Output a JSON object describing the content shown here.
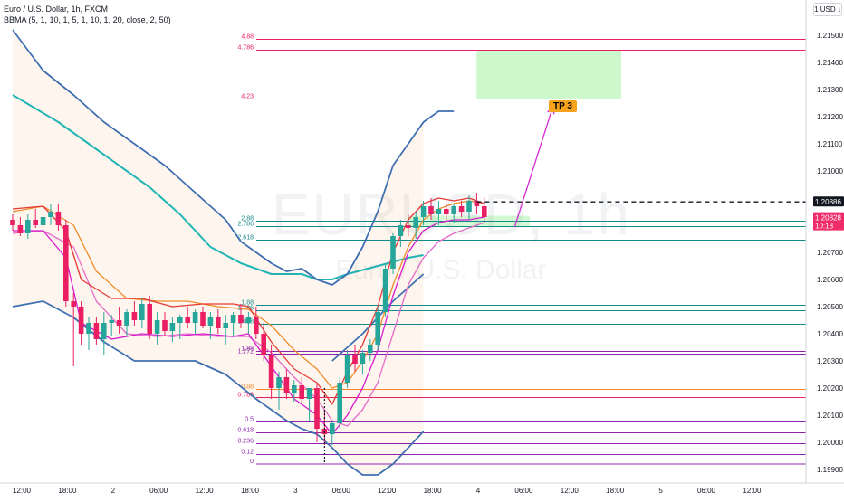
{
  "legend": {
    "symbol_line": "Euro / U.S. Dollar, 1h, FXCM",
    "indicator_line": "BBMA (5, 1, 10, 1, 5, 1, 10, 1, 20, close, 2, 50)"
  },
  "watermark": {
    "symbol": "EURUSD, 1h",
    "name": "Euro / U.S. Dollar"
  },
  "currency_button": "1 USD ↓",
  "tp_label": "TP 3",
  "colors": {
    "up": "#26a69a",
    "down": "#e91e63",
    "bb_outer": "#3f6fb0",
    "ema50": "#21b5b5",
    "ma5_high": "#e53935",
    "ma5_low": "#d81bd0",
    "ma10_high": "#ef8c2a",
    "ma10_low": "#e56cc9",
    "fib_pink": "#e91e63",
    "fib_teal": "#138a8a",
    "fib_purple": "#8e24aa",
    "fib_orange": "#f5842a",
    "tp_zone": "#b7f5b7",
    "arrow": "#d62ad6",
    "current_price": "#ef2c69"
  },
  "chart_data": {
    "type": "candlestick",
    "title": "Euro / U.S. Dollar, 1h, FXCM",
    "ylim": [
      1.1985,
      1.2163
    ],
    "y_ticks": [
      1.215,
      1.214,
      1.213,
      1.212,
      1.211,
      1.21,
      1.208,
      1.207,
      1.206,
      1.205,
      1.204,
      1.203,
      1.202,
      1.201,
      1.2,
      1.199
    ],
    "x_tick_labels": [
      "12:00",
      "18:00",
      "2",
      "06:00",
      "12:00",
      "18:00",
      "3",
      "06:00",
      "12:00",
      "18:00",
      "4",
      "06:00",
      "12:00",
      "18:00",
      "5",
      "06:00",
      "12:00"
    ],
    "price_labels": [
      {
        "value": 1.20886,
        "text": "1.20886"
      },
      {
        "value": 1.20828,
        "text": "1.20828",
        "sub": "10:18"
      }
    ],
    "candles": [
      [
        1.2082,
        1.2084,
        1.2078,
        1.208
      ],
      [
        1.208,
        1.2083,
        1.2076,
        1.2077
      ],
      [
        1.2077,
        1.2084,
        1.2075,
        1.2082
      ],
      [
        1.2082,
        1.2086,
        1.2079,
        1.208
      ],
      [
        1.208,
        1.2084,
        1.2076,
        1.2083
      ],
      [
        1.2083,
        1.2088,
        1.208,
        1.2085
      ],
      [
        1.2085,
        1.2088,
        1.2078,
        1.208
      ],
      [
        1.208,
        1.2082,
        1.205,
        1.2052
      ],
      [
        1.2052,
        1.2055,
        1.2028,
        1.205
      ],
      [
        1.205,
        1.2052,
        1.2036,
        1.204
      ],
      [
        1.204,
        1.2046,
        1.2034,
        1.2044
      ],
      [
        1.2044,
        1.2046,
        1.2036,
        1.2038
      ],
      [
        1.2038,
        1.2048,
        1.2032,
        1.2044
      ],
      [
        1.2044,
        1.2047,
        1.2039,
        1.2045
      ],
      [
        1.2045,
        1.205,
        1.204,
        1.2043
      ],
      [
        1.2043,
        1.2049,
        1.2039,
        1.2048
      ],
      [
        1.2048,
        1.2052,
        1.2043,
        1.2045
      ],
      [
        1.2045,
        1.2053,
        1.2042,
        1.2051
      ],
      [
        1.2051,
        1.2054,
        1.2038,
        1.204
      ],
      [
        1.204,
        1.2048,
        1.2036,
        1.2045
      ],
      [
        1.2045,
        1.2048,
        1.2039,
        1.2041
      ],
      [
        1.2041,
        1.2046,
        1.2037,
        1.2044
      ],
      [
        1.2044,
        1.2047,
        1.2038,
        1.2046
      ],
      [
        1.2046,
        1.205,
        1.2042,
        1.2044
      ],
      [
        1.2044,
        1.2049,
        1.204,
        1.2048
      ],
      [
        1.2048,
        1.205,
        1.2042,
        1.2043
      ],
      [
        1.2043,
        1.2048,
        1.2038,
        1.2046
      ],
      [
        1.2046,
        1.2049,
        1.204,
        1.2042
      ],
      [
        1.2042,
        1.2047,
        1.2036,
        1.2044
      ],
      [
        1.2044,
        1.2048,
        1.2039,
        1.2047
      ],
      [
        1.2047,
        1.2051,
        1.2042,
        1.2044
      ],
      [
        1.2044,
        1.2048,
        1.204,
        1.2046
      ],
      [
        1.2046,
        1.205,
        1.2038,
        1.204
      ],
      [
        1.204,
        1.2044,
        1.203,
        1.2032
      ],
      [
        1.2032,
        1.2036,
        1.2016,
        1.202
      ],
      [
        1.202,
        1.2026,
        1.2012,
        1.2024
      ],
      [
        1.2024,
        1.2027,
        1.2016,
        1.2018
      ],
      [
        1.2018,
        1.2023,
        1.2015,
        1.2021
      ],
      [
        1.2021,
        1.2024,
        1.2014,
        1.2016
      ],
      [
        1.2016,
        1.202,
        1.2008,
        1.202
      ],
      [
        1.202,
        1.2022,
        1.2,
        1.2005
      ],
      [
        1.2005,
        1.2012,
        1.1999,
        1.2003
      ],
      [
        1.2003,
        1.2008,
        1.1999,
        1.2007
      ],
      [
        1.2007,
        1.2024,
        1.2005,
        1.2022
      ],
      [
        1.2022,
        1.2034,
        1.202,
        1.2032
      ],
      [
        1.2032,
        1.2036,
        1.2026,
        1.2029
      ],
      [
        1.2029,
        1.2034,
        1.2025,
        1.2033
      ],
      [
        1.2033,
        1.2038,
        1.203,
        1.2036
      ],
      [
        1.2036,
        1.205,
        1.2034,
        1.2048
      ],
      [
        1.2048,
        1.2066,
        1.2046,
        1.2064
      ],
      [
        1.2064,
        1.2077,
        1.2062,
        1.2076
      ],
      [
        1.2076,
        1.2082,
        1.2072,
        1.208
      ],
      [
        1.208,
        1.2084,
        1.2076,
        1.2079
      ],
      [
        1.2079,
        1.2085,
        1.2075,
        1.2083
      ],
      [
        1.2083,
        1.2089,
        1.208,
        1.2087
      ],
      [
        1.2087,
        1.209,
        1.2082,
        1.2084
      ],
      [
        1.2084,
        1.2089,
        1.208,
        1.2086
      ],
      [
        1.2086,
        1.2088,
        1.2082,
        1.2084
      ],
      [
        1.2084,
        1.2088,
        1.2081,
        1.2087
      ],
      [
        1.2087,
        1.2089,
        1.2083,
        1.2085
      ],
      [
        1.2085,
        1.2091,
        1.2082,
        1.2089
      ],
      [
        1.2089,
        1.2092,
        1.2084,
        1.2087
      ],
      [
        1.2087,
        1.209,
        1.2081,
        1.2083
      ]
    ],
    "indicators": {
      "bb_upper": [
        [
          0,
          1.2152
        ],
        [
          4,
          1.2137
        ],
        [
          8,
          1.2128
        ],
        [
          12,
          1.2118
        ],
        [
          16,
          1.211
        ],
        [
          20,
          1.2102
        ],
        [
          24,
          1.2092
        ],
        [
          28,
          1.2082
        ],
        [
          30,
          1.2074
        ],
        [
          34,
          1.2066
        ],
        [
          36,
          1.2063
        ],
        [
          38,
          1.2064
        ],
        [
          40,
          1.206
        ],
        [
          42,
          1.2058
        ],
        [
          44,
          1.2062
        ],
        [
          46,
          1.2072
        ],
        [
          48,
          1.2085
        ],
        [
          50,
          1.2102
        ],
        [
          52,
          1.211
        ],
        [
          54,
          1.2118
        ],
        [
          56,
          1.2122
        ],
        [
          58,
          1.2122
        ]
      ],
      "bb_lower": [
        [
          0,
          1.205
        ],
        [
          4,
          1.2052
        ],
        [
          8,
          1.2046
        ],
        [
          12,
          1.2037
        ],
        [
          16,
          1.203
        ],
        [
          20,
          1.203
        ],
        [
          24,
          1.203
        ],
        [
          28,
          1.2025
        ],
        [
          32,
          1.2016
        ],
        [
          36,
          1.2008
        ],
        [
          38,
          1.2005
        ],
        [
          40,
          1.2003
        ],
        [
          42,
          1.1998
        ],
        [
          44,
          1.1992
        ],
        [
          46,
          1.1988
        ],
        [
          48,
          1.1988
        ],
        [
          50,
          1.1992
        ],
        [
          52,
          1.1998
        ],
        [
          54,
          1.2004
        ]
      ],
      "bb_upper_tail": [
        [
          42,
          1.203
        ],
        [
          46,
          1.204
        ],
        [
          50,
          1.2052
        ],
        [
          54,
          1.2062
        ]
      ],
      "ema50": [
        [
          0,
          1.2128
        ],
        [
          6,
          1.2118
        ],
        [
          12,
          1.2106
        ],
        [
          18,
          1.2094
        ],
        [
          22,
          1.2084
        ],
        [
          26,
          1.2072
        ],
        [
          30,
          1.2066
        ],
        [
          34,
          1.2062
        ],
        [
          38,
          1.2062
        ],
        [
          40,
          1.206
        ],
        [
          42,
          1.206
        ],
        [
          44,
          1.2062
        ],
        [
          48,
          1.2065
        ],
        [
          52,
          1.2068
        ],
        [
          54,
          1.2069
        ]
      ],
      "ma5_high": [
        [
          0,
          1.2086
        ],
        [
          4,
          1.2087
        ],
        [
          7,
          1.2078
        ],
        [
          9,
          1.206
        ],
        [
          13,
          1.2053
        ],
        [
          17,
          1.2053
        ],
        [
          21,
          1.205
        ],
        [
          25,
          1.2051
        ],
        [
          29,
          1.2051
        ],
        [
          31,
          1.205
        ],
        [
          34,
          1.2037
        ],
        [
          37,
          1.2027
        ],
        [
          40,
          1.2022
        ],
        [
          42,
          1.2014
        ],
        [
          44,
          1.2026
        ],
        [
          46,
          1.2036
        ],
        [
          48,
          1.205
        ],
        [
          50,
          1.207
        ],
        [
          52,
          1.2082
        ],
        [
          54,
          1.2088
        ],
        [
          56,
          1.209
        ],
        [
          58,
          1.2089
        ],
        [
          60,
          1.209
        ],
        [
          62,
          1.2088
        ]
      ],
      "ma5_low": [
        [
          0,
          1.2078
        ],
        [
          4,
          1.2078
        ],
        [
          7,
          1.2068
        ],
        [
          9,
          1.2044
        ],
        [
          13,
          1.2038
        ],
        [
          17,
          1.204
        ],
        [
          21,
          1.2039
        ],
        [
          25,
          1.204
        ],
        [
          29,
          1.2039
        ],
        [
          31,
          1.204
        ],
        [
          34,
          1.2028
        ],
        [
          37,
          1.2016
        ],
        [
          40,
          1.201
        ],
        [
          42,
          1.2003
        ],
        [
          44,
          1.201
        ],
        [
          46,
          1.202
        ],
        [
          48,
          1.2034
        ],
        [
          50,
          1.2054
        ],
        [
          52,
          1.207
        ],
        [
          54,
          1.2078
        ],
        [
          56,
          1.2081
        ],
        [
          58,
          1.2082
        ],
        [
          60,
          1.2082
        ],
        [
          62,
          1.2083
        ]
      ],
      "ma10_high": [
        [
          0,
          1.2085
        ],
        [
          4,
          1.2087
        ],
        [
          8,
          1.208
        ],
        [
          11,
          1.2063
        ],
        [
          15,
          1.2053
        ],
        [
          19,
          1.2052
        ],
        [
          23,
          1.2052
        ],
        [
          27,
          1.205
        ],
        [
          31,
          1.2049
        ],
        [
          34,
          1.2043
        ],
        [
          37,
          1.2034
        ],
        [
          40,
          1.2027
        ],
        [
          42,
          1.202
        ],
        [
          44,
          1.2022
        ],
        [
          46,
          1.203
        ],
        [
          48,
          1.204
        ],
        [
          50,
          1.2058
        ],
        [
          52,
          1.2072
        ],
        [
          54,
          1.2082
        ],
        [
          56,
          1.2086
        ],
        [
          58,
          1.2088
        ],
        [
          60,
          1.2089
        ],
        [
          62,
          1.2088
        ]
      ],
      "ma10_low": [
        [
          0,
          1.2077
        ],
        [
          4,
          1.2078
        ],
        [
          8,
          1.2072
        ],
        [
          11,
          1.2052
        ],
        [
          15,
          1.204
        ],
        [
          19,
          1.2039
        ],
        [
          23,
          1.204
        ],
        [
          27,
          1.2039
        ],
        [
          31,
          1.2039
        ],
        [
          34,
          1.2033
        ],
        [
          37,
          1.2024
        ],
        [
          40,
          1.2016
        ],
        [
          42,
          1.2008
        ],
        [
          44,
          1.2006
        ],
        [
          46,
          1.2012
        ],
        [
          48,
          1.2022
        ],
        [
          50,
          1.204
        ],
        [
          52,
          1.2058
        ],
        [
          54,
          1.2068
        ],
        [
          56,
          1.2074
        ],
        [
          58,
          1.2077
        ],
        [
          60,
          1.2079
        ],
        [
          62,
          1.2081
        ]
      ]
    },
    "fib_levels": [
      {
        "label": "4.88",
        "value": 1.21485,
        "color": "fib_pink"
      },
      {
        "label": "4.786",
        "value": 1.21445,
        "color": "fib_pink"
      },
      {
        "label": "4.23",
        "value": 1.21265,
        "color": "fib_pink"
      },
      {
        "label": "2.88",
        "value": 1.20815,
        "color": "fib_teal"
      },
      {
        "label": "2.786",
        "value": 1.20795,
        "color": "fib_teal"
      },
      {
        "label": "2.618",
        "value": 1.20745,
        "color": "fib_teal"
      },
      {
        "label": "1.88",
        "value": 1.20505,
        "color": "fib_teal"
      },
      {
        "label": "1.786",
        "value": 1.20485,
        "color": "fib_teal"
      },
      {
        "label": "1.618",
        "value": 1.20435,
        "color": "fib_teal"
      },
      {
        "label": "1.88",
        "value": 1.20335,
        "color": "fib_purple"
      },
      {
        "label": "1.272",
        "value": 1.20325,
        "color": "fib_purple"
      },
      {
        "label": "0.88",
        "value": 1.20195,
        "color": "fib_orange"
      },
      {
        "label": "0.786",
        "value": 1.20165,
        "color": "fib_pink"
      },
      {
        "label": "0.5",
        "value": 1.20075,
        "color": "fib_purple"
      },
      {
        "label": "0.618",
        "value": 1.20035,
        "color": "fib_purple"
      },
      {
        "label": "0.236",
        "value": 1.19995,
        "color": "fib_purple"
      },
      {
        "label": "0.12",
        "value": 1.19955,
        "color": "fib_purple"
      },
      {
        "label": "0",
        "value": 1.1992,
        "color": "fib_purple"
      }
    ],
    "tp_zone": {
      "from_bar": 61,
      "to_bar": 80,
      "low": 1.21265,
      "high": 1.21445
    },
    "entry_zone": {
      "from_bar": 52,
      "to_bar": 68,
      "low": 1.20795,
      "high": 1.20835
    },
    "arrow": {
      "from": [
        66,
        1.20795
      ],
      "to": [
        71,
        1.21235
      ]
    },
    "dashed_price_line": {
      "value": 1.20886,
      "from_bar": 61
    },
    "bars_per_day": 24,
    "first_bar_hour": 12
  }
}
